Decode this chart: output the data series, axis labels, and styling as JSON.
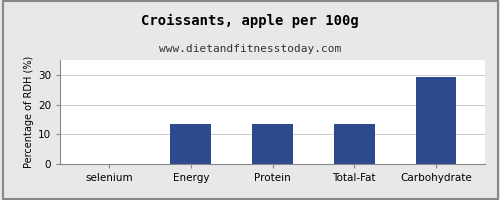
{
  "title": "Croissants, apple per 100g",
  "subtitle": "www.dietandfitnesstoday.com",
  "categories": [
    "selenium",
    "Energy",
    "Protein",
    "Total-Fat",
    "Carbohydrate"
  ],
  "values": [
    0,
    13.3,
    13.3,
    13.4,
    29.2
  ],
  "bar_color": "#2e4a8e",
  "ylabel": "Percentage of RDH (%)",
  "ylim": [
    0,
    35
  ],
  "yticks": [
    0,
    10,
    20,
    30
  ],
  "background_color": "#e8e8e8",
  "plot_bg_color": "#ffffff",
  "title_fontsize": 10,
  "subtitle_fontsize": 8,
  "ylabel_fontsize": 7,
  "tick_fontsize": 7.5,
  "border_color": "#aaaaaa"
}
